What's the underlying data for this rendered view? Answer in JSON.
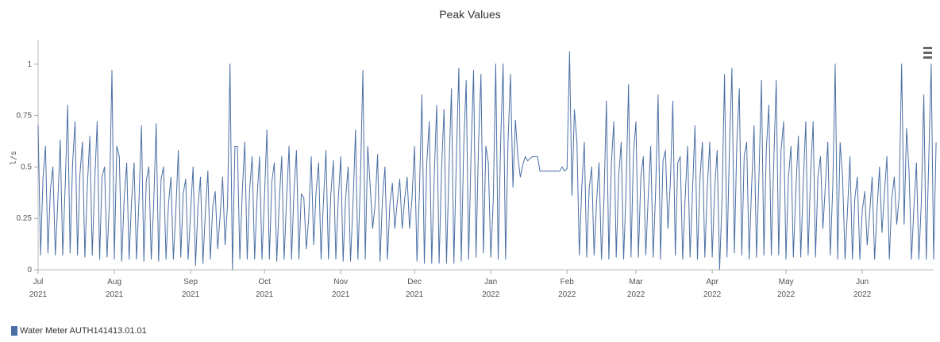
{
  "chart_data": {
    "type": "line",
    "title": "Peak Values",
    "ylabel": "l/s",
    "ylim": [
      0,
      1.1
    ],
    "yticks": [
      "0",
      "0.25",
      "0.5",
      "0.75",
      "1"
    ],
    "x_range": [
      "2021-07-01",
      "2022-06-30"
    ],
    "x_ticks": [
      {
        "month": "Jul",
        "year": "2021",
        "date": "2021-07-01"
      },
      {
        "month": "Aug",
        "year": "2021",
        "date": "2021-08-01"
      },
      {
        "month": "Sep",
        "year": "2021",
        "date": "2021-09-01"
      },
      {
        "month": "Oct",
        "year": "2021",
        "date": "2021-10-01"
      },
      {
        "month": "Nov",
        "year": "2021",
        "date": "2021-11-01"
      },
      {
        "month": "Dec",
        "year": "2021",
        "date": "2021-12-01"
      },
      {
        "month": "Jan",
        "year": "2022",
        "date": "2022-01-01"
      },
      {
        "month": "Feb",
        "year": "2022",
        "date": "2022-02-01"
      },
      {
        "month": "Mar",
        "year": "2022",
        "date": "2022-03-01"
      },
      {
        "month": "Apr",
        "year": "2022",
        "date": "2022-04-01"
      },
      {
        "month": "May",
        "year": "2022",
        "date": "2022-05-01"
      },
      {
        "month": "Jun",
        "year": "2022",
        "date": "2022-06-01"
      }
    ],
    "series": [
      {
        "name": "Water Meter AUTH141413.01.01",
        "color": "#4a6fa5",
        "x": [
          "2021-07-01",
          "2021-07-04",
          "2021-07-07",
          "2021-07-10",
          "2021-07-13",
          "2021-07-16",
          "2021-07-19",
          "2021-07-22",
          "2021-07-25",
          "2021-07-28",
          "2021-07-31",
          "2021-08-03",
          "2021-08-06",
          "2021-08-09",
          "2021-08-12",
          "2021-08-15",
          "2021-08-18",
          "2021-08-21",
          "2021-08-24",
          "2021-08-27",
          "2021-08-30",
          "2021-09-02",
          "2021-09-05",
          "2021-09-08",
          "2021-09-11",
          "2021-09-14",
          "2021-09-17",
          "2021-09-20",
          "2021-09-23",
          "2021-09-26",
          "2021-09-29",
          "2021-10-02",
          "2021-10-05",
          "2021-10-08",
          "2021-10-11",
          "2021-10-14",
          "2021-10-17",
          "2021-10-20",
          "2021-10-23",
          "2021-10-26",
          "2021-10-29",
          "2021-11-01",
          "2021-11-04",
          "2021-11-07",
          "2021-11-10",
          "2021-11-13",
          "2021-11-16",
          "2021-11-19",
          "2021-11-22",
          "2021-11-25",
          "2021-11-28",
          "2021-12-01",
          "2021-12-04",
          "2021-12-07",
          "2021-12-10",
          "2021-12-13",
          "2021-12-16",
          "2021-12-19",
          "2021-12-22",
          "2021-12-25",
          "2021-12-28",
          "2021-12-31",
          "2022-01-03",
          "2022-01-06",
          "2022-01-09",
          "2022-01-12",
          "2022-01-15",
          "2022-01-18",
          "2022-01-21",
          "2022-01-24",
          "2022-01-27",
          "2022-01-30",
          "2022-02-02",
          "2022-02-05",
          "2022-02-08",
          "2022-02-11",
          "2022-02-14",
          "2022-02-17",
          "2022-02-20",
          "2022-02-23",
          "2022-02-26",
          "2022-03-01",
          "2022-03-04",
          "2022-03-07",
          "2022-03-10",
          "2022-03-13",
          "2022-03-16",
          "2022-03-19",
          "2022-03-22",
          "2022-03-25",
          "2022-03-28",
          "2022-03-31",
          "2022-04-03",
          "2022-04-06",
          "2022-04-09",
          "2022-04-12",
          "2022-04-15",
          "2022-04-18",
          "2022-04-21",
          "2022-04-24",
          "2022-04-27",
          "2022-04-30",
          "2022-05-03",
          "2022-05-06",
          "2022-05-09",
          "2022-05-12",
          "2022-05-15",
          "2022-05-18",
          "2022-05-21",
          "2022-05-24",
          "2022-05-27",
          "2022-05-30",
          "2022-06-02",
          "2022-06-05",
          "2022-06-08",
          "2022-06-11",
          "2022-06-14",
          "2022-06-17",
          "2022-06-20",
          "2022-06-23",
          "2022-06-26",
          "2022-06-29"
        ],
        "min": [
          0.07,
          0.08,
          0.07,
          0.07,
          0.08,
          0.07,
          0.06,
          0.07,
          0.05,
          0.06,
          0.05,
          0.04,
          0.05,
          0.05,
          0.04,
          0.05,
          0.04,
          0.05,
          0.05,
          0.06,
          0.05,
          0.02,
          0.03,
          0.05,
          0.1,
          0.12,
          0.0,
          0.05,
          0.05,
          0.05,
          0.05,
          0.05,
          0.04,
          0.05,
          0.05,
          0.05,
          0.1,
          0.12,
          0.05,
          0.05,
          0.05,
          0.04,
          0.04,
          0.05,
          0.05,
          0.2,
          0.04,
          0.05,
          0.2,
          0.2,
          0.2,
          0.04,
          0.03,
          0.03,
          0.03,
          0.03,
          0.03,
          0.04,
          0.05,
          0.06,
          0.08,
          0.06,
          0.05,
          0.05,
          0.4,
          0.45,
          0.53,
          0.55,
          0.48,
          0.48,
          0.48,
          0.48,
          0.36,
          0.07,
          0.06,
          0.07,
          0.05,
          0.05,
          0.06,
          0.05,
          0.06,
          0.06,
          0.07,
          0.06,
          0.05,
          0.2,
          0.07,
          0.05,
          0.06,
          0.05,
          0.06,
          0.06,
          0.0,
          0.06,
          0.08,
          0.07,
          0.05,
          0.06,
          0.07,
          0.07,
          0.07,
          0.05,
          0.06,
          0.06,
          0.07,
          0.06,
          0.2,
          0.07,
          0.05,
          0.05,
          0.05,
          0.05,
          0.12,
          0.05,
          0.18,
          0.05,
          0.22,
          0.22,
          0.05,
          0.05,
          0.05,
          0.05
        ],
        "max": [
          0.7,
          0.6,
          0.5,
          0.63,
          0.8,
          0.72,
          0.62,
          0.65,
          0.72,
          0.5,
          0.97,
          0.55,
          0.52,
          0.52,
          0.7,
          0.5,
          0.71,
          0.5,
          0.45,
          0.58,
          0.44,
          0.5,
          0.45,
          0.48,
          0.38,
          0.45,
          1.0,
          0.6,
          0.62,
          0.55,
          0.55,
          0.68,
          0.52,
          0.55,
          0.6,
          0.58,
          0.35,
          0.55,
          0.52,
          0.58,
          0.53,
          0.55,
          0.5,
          0.68,
          0.97,
          0.4,
          0.56,
          0.5,
          0.42,
          0.44,
          0.45,
          0.6,
          0.85,
          0.72,
          0.8,
          0.78,
          0.88,
          0.98,
          0.92,
          0.97,
          0.95,
          0.52,
          1.0,
          1.0,
          0.95,
          0.55,
          0.55,
          0.55,
          0.48,
          0.48,
          0.48,
          0.5,
          1.06,
          0.62,
          0.62,
          0.5,
          0.52,
          0.82,
          0.72,
          0.62,
          0.9,
          0.72,
          0.55,
          0.6,
          0.85,
          0.58,
          0.82,
          0.55,
          0.6,
          0.7,
          0.62,
          0.62,
          0.58,
          0.95,
          0.98,
          0.88,
          0.62,
          0.7,
          0.92,
          0.8,
          0.92,
          0.72,
          0.6,
          0.65,
          0.72,
          0.72,
          0.55,
          0.62,
          1.0,
          0.45,
          0.55,
          0.45,
          0.38,
          0.45,
          0.5,
          0.55,
          0.45,
          1.0,
          0.48,
          0.52,
          0.85,
          1.0
        ]
      }
    ]
  },
  "legend": {
    "label": "Water Meter AUTH141413.01.01",
    "color": "#4a6fa5"
  },
  "menu": {
    "icon": "hamburger-menu-icon"
  }
}
